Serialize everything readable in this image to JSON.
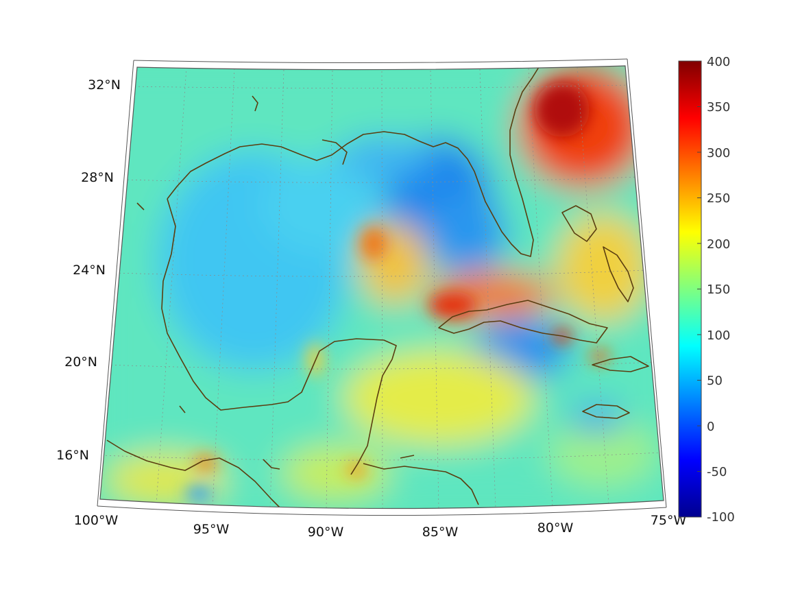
{
  "map": {
    "projection": "conic",
    "lat_range": [
      14,
      33
    ],
    "lon_range": [
      -100,
      -75
    ],
    "lat_ticks": [
      {
        "value": 32,
        "label": "32°N"
      },
      {
        "value": 28,
        "label": "28°N"
      },
      {
        "value": 24,
        "label": "24°N"
      },
      {
        "value": 20,
        "label": "20°N"
      },
      {
        "value": 16,
        "label": "16°N"
      }
    ],
    "lon_ticks": [
      {
        "value": -100,
        "label": "100°W"
      },
      {
        "value": -95,
        "label": "95°W"
      },
      {
        "value": -90,
        "label": "90°W"
      },
      {
        "value": -85,
        "label": "85°W"
      },
      {
        "value": -80,
        "label": "80°W"
      },
      {
        "value": -75,
        "label": "75°W"
      }
    ],
    "grid": true,
    "coastline_color": "#5a3d10"
  },
  "colorbar": {
    "colormap": "jet",
    "range": [
      -100,
      400
    ],
    "ticks": [
      "400",
      "350",
      "300",
      "250",
      "200",
      "150",
      "100",
      "50",
      "0",
      "-50",
      "-100"
    ]
  }
}
